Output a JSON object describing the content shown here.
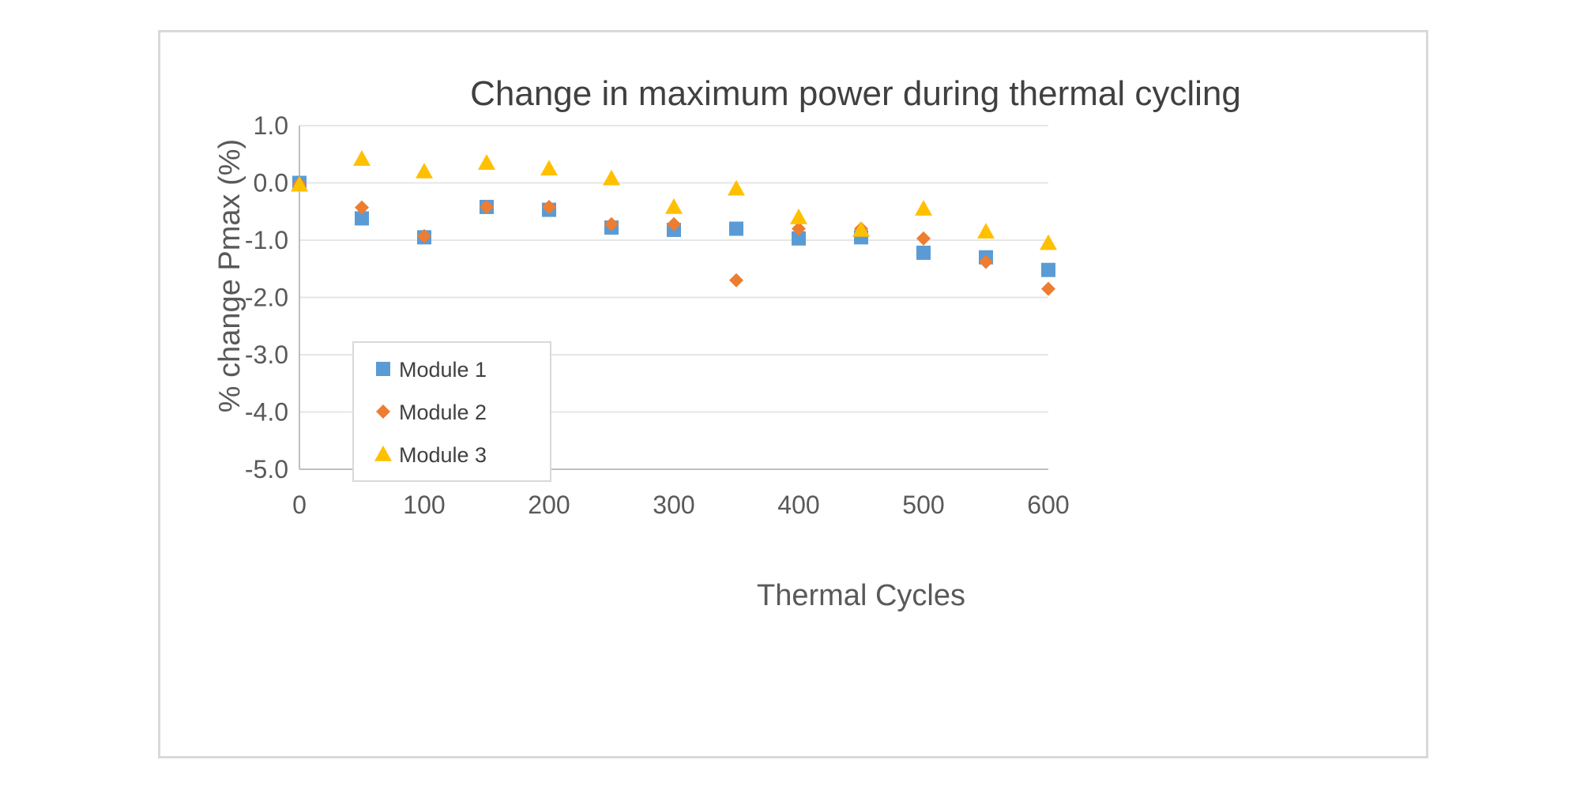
{
  "chart_data": {
    "type": "scatter",
    "title": "Change in maximum power during thermal cycling",
    "xlabel": "Thermal Cycles",
    "ylabel": "% change Pmax (%)",
    "xlim": [
      0,
      600
    ],
    "ylim": [
      -5,
      1
    ],
    "x_ticks": [
      0,
      100,
      200,
      300,
      400,
      500,
      600
    ],
    "x_tick_labels": [
      "0",
      "100",
      "200",
      "300",
      "400",
      "500",
      "600"
    ],
    "y_ticks": [
      1,
      0,
      -1,
      -2,
      -3,
      -4,
      -5
    ],
    "y_tick_labels": [
      "1.0",
      "0.0",
      "-1.0",
      "-2.0",
      "-3.0",
      "-4.0",
      "-5.0"
    ],
    "grid": "horizontal",
    "legend_position": "bottom-left",
    "x": [
      0,
      50,
      100,
      150,
      200,
      250,
      300,
      350,
      400,
      450,
      500,
      550,
      600
    ],
    "series": [
      {
        "name": "Module 1",
        "marker": "square",
        "color": "#5b9bd5",
        "values": [
          0.0,
          -0.62,
          -0.95,
          -0.42,
          -0.47,
          -0.78,
          -0.82,
          -0.8,
          -0.97,
          -0.95,
          -1.22,
          -1.3,
          -1.52
        ]
      },
      {
        "name": "Module 2",
        "marker": "diamond",
        "color": "#ed7d31",
        "values": [
          -0.02,
          -0.43,
          -0.93,
          -0.42,
          -0.42,
          -0.72,
          -0.72,
          -1.7,
          -0.8,
          -0.8,
          -0.97,
          -1.38,
          -1.85
        ]
      },
      {
        "name": "Module 3",
        "marker": "triangle",
        "color": "#ffc000",
        "values": [
          -0.03,
          0.42,
          0.2,
          0.35,
          0.25,
          0.08,
          -0.42,
          -0.1,
          -0.6,
          -0.82,
          -0.45,
          -0.85,
          -1.05
        ]
      }
    ]
  }
}
